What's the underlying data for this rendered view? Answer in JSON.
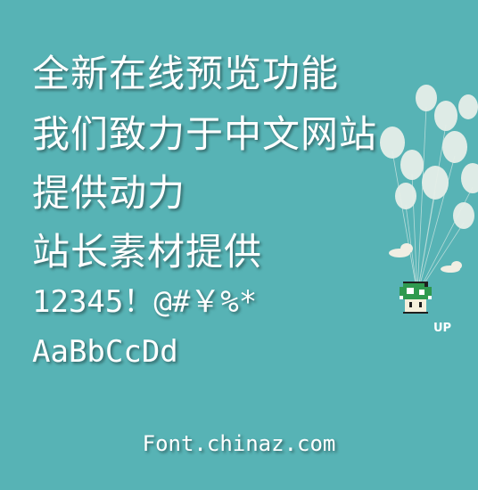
{
  "sample_lines": [
    "全新在线预览功能",
    "我们致力于中文网站",
    "提供动力",
    "站长素材提供",
    "12345！@#￥%*",
    "AaBbCcDd"
  ],
  "footer": "Font.chinaz.com",
  "illustration": {
    "icon": "balloon-mushroom-icon",
    "label": "UP"
  },
  "colors": {
    "background": "#57b3b5",
    "text": "#ffffff",
    "balloon": "#e6efe9",
    "cloud": "#f1eee3",
    "mushroom_green": "#2f9a4f"
  }
}
